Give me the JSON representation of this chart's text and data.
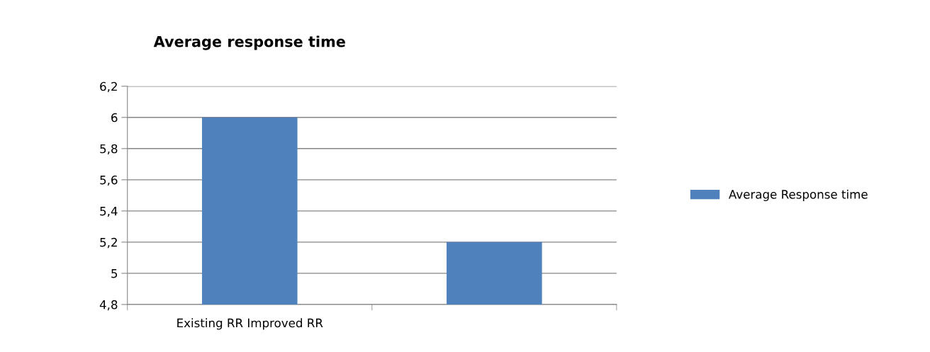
{
  "chart_data": {
    "type": "bar",
    "title": "Average response time",
    "categories": [
      "Existing RR Improved RR",
      null
    ],
    "series": [
      {
        "name": "Average Response time",
        "color": "#4f81bd",
        "values": [
          6,
          5.2
        ]
      }
    ],
    "ylim": [
      4.8,
      6.2
    ],
    "yticks": [
      {
        "value": 4.8,
        "label": "4,8"
      },
      {
        "value": 5,
        "label": "5"
      },
      {
        "value": 5.2,
        "label": "5,2"
      },
      {
        "value": 5.4,
        "label": "5,4"
      },
      {
        "value": 5.6,
        "label": "5,6"
      },
      {
        "value": 5.8,
        "label": "5,8"
      },
      {
        "value": 6,
        "label": "6"
      },
      {
        "value": 6.2,
        "label": "6,2"
      }
    ],
    "grid": "y",
    "legend": "right"
  }
}
